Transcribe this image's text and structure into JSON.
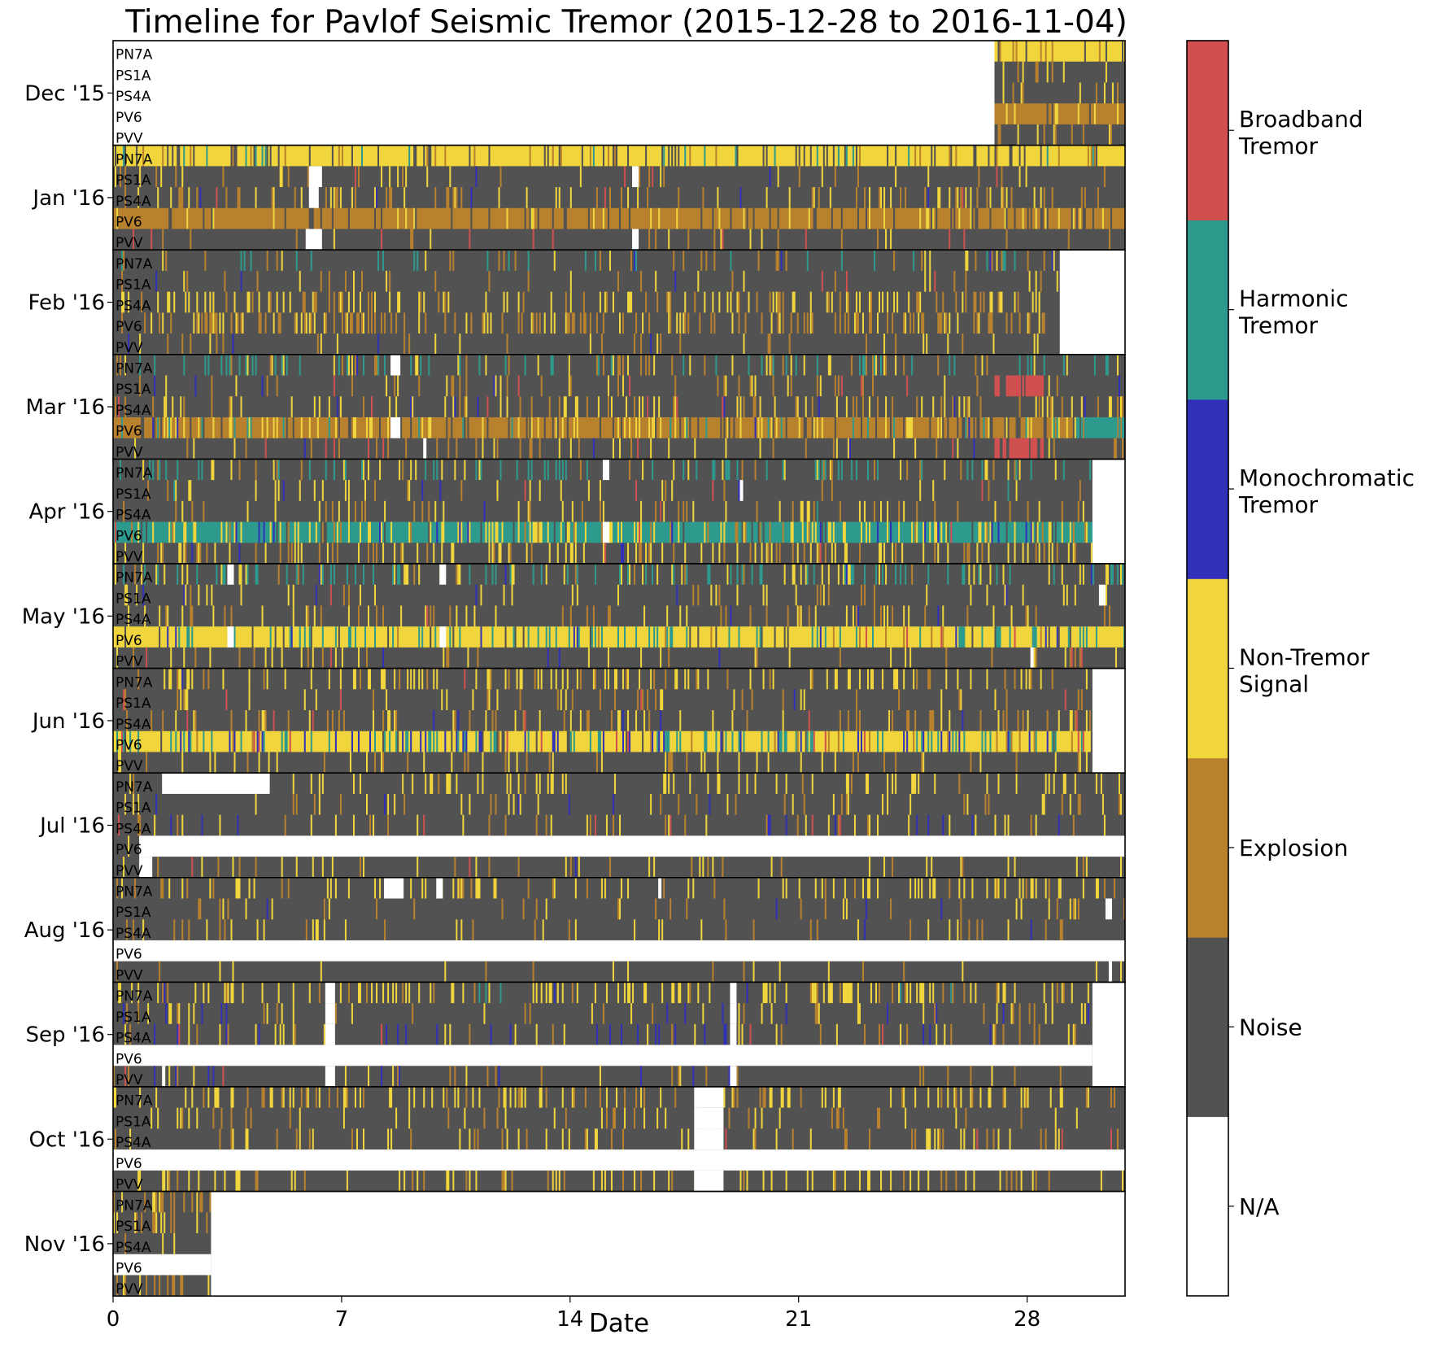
{
  "chart_data": {
    "type": "heatmap",
    "title": "Timeline for Pavlof Seismic Tremor (2015-12-28 to 2016-11-04)",
    "xlabel": "Date",
    "xlim": [
      0,
      31
    ],
    "x_ticks": [
      0,
      7,
      14,
      21,
      28
    ],
    "stations": [
      "PN7A",
      "PS1A",
      "PS4A",
      "PV6",
      "PVV"
    ],
    "legend_position": "right colorbar",
    "classes": [
      {
        "label": "N/A",
        "color": "#ffffff"
      },
      {
        "label": "Noise",
        "color": "#525252"
      },
      {
        "label": "Explosion",
        "color": "#b8812e"
      },
      {
        "label": "Non-Tremor Signal",
        "color": "#f0d53c"
      },
      {
        "label": "Monochromatic Tremor",
        "color": "#3030b8"
      },
      {
        "label": "Harmonic Tremor",
        "color": "#2e9a8e"
      },
      {
        "label": "Broadband Tremor",
        "color": "#d05050"
      }
    ],
    "colorbar_labels": [
      [
        "N/A"
      ],
      [
        "Noise"
      ],
      [
        "Explosion"
      ],
      [
        "Non-Tremor",
        "Signal"
      ],
      [
        "Monochromatic",
        "Tremor"
      ],
      [
        "Harmonic",
        "Tremor"
      ],
      [
        "Broadband",
        "Tremor"
      ]
    ],
    "months": [
      {
        "label": "Dec '15",
        "start_day": 27,
        "end_day": 31,
        "missing": [
          [],
          [],
          [],
          [],
          []
        ],
        "weights": {
          "PN7A": [
            0,
            30,
            20,
            50,
            0,
            0,
            0
          ],
          "PS1A": [
            0,
            80,
            15,
            5,
            0,
            0,
            0
          ],
          "PS4A": [
            0,
            60,
            25,
            15,
            0,
            0,
            0
          ],
          "PV6": [
            0,
            15,
            60,
            25,
            0,
            0,
            0
          ],
          "PVV": [
            0,
            70,
            15,
            15,
            0,
            0,
            0
          ]
        }
      },
      {
        "label": "Jan '16",
        "start_day": 0,
        "end_day": 31,
        "missing": [
          [],
          [
            [
              6,
              6.4
            ],
            [
              15.9,
              16.1
            ]
          ],
          [
            [
              6,
              6.3
            ]
          ],
          [],
          [
            [
              5.9,
              6.4
            ],
            [
              15.9,
              16.1
            ]
          ]
        ],
        "weights": {
          "PN7A": [
            0,
            25,
            10,
            55,
            0,
            10,
            0
          ],
          "PS1A": [
            0,
            80,
            10,
            8,
            1,
            0,
            1
          ],
          "PS4A": [
            0,
            65,
            20,
            13,
            1,
            0,
            1
          ],
          "PV6": [
            0,
            25,
            60,
            15,
            0,
            0,
            0
          ],
          "PVV": [
            0,
            88,
            5,
            4,
            0,
            0,
            3
          ]
        }
      },
      {
        "label": "Feb '16",
        "start_day": 0,
        "end_day": 29,
        "missing": [
          [],
          [],
          [],
          [],
          []
        ],
        "weights": {
          "PN7A": [
            0,
            75,
            10,
            5,
            1,
            9,
            0
          ],
          "PS1A": [
            0,
            85,
            8,
            5,
            1,
            0,
            1
          ],
          "PS4A": [
            0,
            55,
            20,
            25,
            0,
            0,
            0
          ],
          "PV6": [
            0,
            40,
            40,
            20,
            0,
            0,
            0
          ],
          "PVV": [
            0,
            85,
            8,
            5,
            2,
            0,
            0
          ]
        }
      },
      {
        "label": "Mar '16",
        "start_day": 0,
        "end_day": 31,
        "missing": [
          [
            [
              8.5,
              8.8
            ]
          ],
          [],
          [],
          [
            [
              8.5,
              8.8
            ]
          ],
          [
            [
              9.5,
              9.6
            ]
          ]
        ],
        "weights": {
          "PN7A": [
            0,
            60,
            10,
            10,
            1,
            19,
            0
          ],
          "PS1A": [
            0,
            78,
            10,
            8,
            2,
            0,
            2
          ],
          "PS4A": [
            0,
            60,
            15,
            22,
            2,
            0,
            1
          ],
          "PV6": [
            0,
            30,
            35,
            25,
            1,
            9,
            0
          ],
          "PVV": [
            0,
            75,
            12,
            10,
            1,
            0,
            2
          ]
        },
        "bursts": [
          {
            "rows": [
              1,
              4
            ],
            "from": 27,
            "to": 28.5,
            "cls": 6
          },
          {
            "rows": [
              3
            ],
            "from": 29.5,
            "to": 31,
            "cls": 5
          }
        ]
      },
      {
        "label": "Apr '16",
        "start_day": 0,
        "end_day": 30,
        "missing": [
          [
            [
              15,
              15.2
            ]
          ],
          [
            [
              19.2,
              19.3
            ]
          ],
          [],
          [
            [
              15,
              15.2
            ]
          ],
          []
        ],
        "weights": {
          "PN7A": [
            0,
            65,
            5,
            10,
            0,
            20,
            0
          ],
          "PS1A": [
            0,
            85,
            5,
            7,
            1,
            1,
            1
          ],
          "PS4A": [
            0,
            70,
            15,
            12,
            1,
            1,
            1
          ],
          "PV6": [
            0,
            10,
            10,
            35,
            5,
            38,
            2
          ],
          "PVV": [
            0,
            55,
            15,
            28,
            1,
            0,
            1
          ]
        }
      },
      {
        "label": "May '16",
        "start_day": 0,
        "end_day": 31,
        "missing": [
          [
            [
              10,
              10.2
            ],
            [
              3.5,
              3.7
            ]
          ],
          [
            [
              30.2,
              30.4
            ]
          ],
          [],
          [
            [
              10,
              10.2
            ],
            [
              3.5,
              3.7
            ]
          ],
          [
            [
              28.1,
              28.2
            ]
          ]
        ],
        "weights": {
          "PN7A": [
            0,
            50,
            5,
            20,
            1,
            24,
            0
          ],
          "PS1A": [
            0,
            80,
            5,
            13,
            1,
            0,
            1
          ],
          "PS4A": [
            0,
            75,
            10,
            12,
            2,
            0,
            1
          ],
          "PV6": [
            0,
            10,
            5,
            50,
            5,
            28,
            2
          ],
          "PVV": [
            0,
            80,
            8,
            9,
            2,
            0,
            1
          ]
        }
      },
      {
        "label": "Jun '16",
        "start_day": 0,
        "end_day": 30,
        "missing": [
          [],
          [],
          [],
          [],
          []
        ],
        "weights": {
          "PN7A": [
            0,
            55,
            10,
            33,
            1,
            0,
            1
          ],
          "PS1A": [
            0,
            85,
            5,
            8,
            1,
            0,
            1
          ],
          "PS4A": [
            0,
            70,
            15,
            12,
            2,
            0,
            1
          ],
          "PV6": [
            0,
            10,
            5,
            40,
            15,
            27,
            3
          ],
          "PVV": [
            0,
            75,
            10,
            14,
            1,
            0,
            0
          ]
        }
      },
      {
        "label": "Jul '16",
        "start_day": 0,
        "end_day": 31,
        "missing": [
          [
            [
              1.5,
              4.8
            ]
          ],
          [],
          [],
          [
            [
              0.8,
              31
            ]
          ],
          [
            [
              0.8,
              1.2
            ]
          ]
        ],
        "weights": {
          "PN7A": [
            0,
            70,
            5,
            25,
            0,
            0,
            0
          ],
          "PS1A": [
            0,
            80,
            8,
            10,
            2,
            0,
            0
          ],
          "PS4A": [
            0,
            75,
            10,
            10,
            4,
            0,
            1
          ],
          "PV6": [
            0,
            90,
            5,
            5,
            0,
            0,
            0
          ],
          "PVV": [
            0,
            80,
            8,
            10,
            1,
            0,
            1
          ]
        }
      },
      {
        "label": "Aug '16",
        "start_day": 0,
        "end_day": 31,
        "missing": [
          [
            [
              8.3,
              8.9
            ],
            [
              9.9,
              10.1
            ],
            [
              16.7,
              16.8
            ]
          ],
          [
            [
              30.4,
              30.6
            ]
          ],
          [],
          [
            [
              0,
              31
            ]
          ],
          [
            [
              30.5,
              30.6
            ]
          ]
        ],
        "weights": {
          "PN7A": [
            0,
            60,
            10,
            30,
            0,
            0,
            0
          ],
          "PS1A": [
            0,
            85,
            8,
            6,
            1,
            0,
            0
          ],
          "PS4A": [
            0,
            80,
            12,
            7,
            1,
            0,
            0
          ],
          "PV6": [
            0,
            100,
            0,
            0,
            0,
            0,
            0
          ],
          "PVV": [
            0,
            93,
            4,
            3,
            0,
            0,
            0
          ]
        }
      },
      {
        "label": "Sep '16",
        "start_day": 0,
        "end_day": 30,
        "missing": [
          [
            [
              6.5,
              6.8
            ],
            [
              18.9,
              19.1
            ]
          ],
          [
            [
              6.5,
              6.8
            ],
            [
              18.9,
              19.1
            ]
          ],
          [
            [
              6.5,
              6.8
            ],
            [
              18.9,
              19.1
            ]
          ],
          [
            [
              0,
              30
            ]
          ],
          [
            [
              1.5,
              1.6
            ],
            [
              6.5,
              6.8
            ],
            [
              18.9,
              19.1
            ]
          ]
        ],
        "weights": {
          "PN7A": [
            0,
            50,
            10,
            35,
            1,
            4,
            0
          ],
          "PS1A": [
            0,
            80,
            8,
            8,
            4,
            0,
            0
          ],
          "PS4A": [
            0,
            70,
            10,
            10,
            9,
            0,
            1
          ],
          "PV6": [
            0,
            100,
            0,
            0,
            0,
            0,
            0
          ],
          "PVV": [
            0,
            80,
            8,
            5,
            4,
            0,
            3
          ]
        }
      },
      {
        "label": "Oct '16",
        "start_day": 0,
        "end_day": 31,
        "missing": [
          [
            [
              17.8,
              18.7
            ]
          ],
          [
            [
              17.8,
              18.7
            ]
          ],
          [
            [
              17.8,
              18.7
            ]
          ],
          [
            [
              0,
              31
            ]
          ],
          [
            [
              17.8,
              18.7
            ]
          ]
        ],
        "weights": {
          "PN7A": [
            0,
            55,
            15,
            30,
            0,
            0,
            0
          ],
          "PS1A": [
            0,
            80,
            10,
            10,
            0,
            0,
            0
          ],
          "PS4A": [
            0,
            75,
            10,
            14,
            0,
            0,
            1
          ],
          "PV6": [
            0,
            100,
            0,
            0,
            0,
            0,
            0
          ],
          "PVV": [
            0,
            70,
            10,
            20,
            0,
            0,
            0
          ]
        }
      },
      {
        "label": "Nov '16",
        "start_day": 0,
        "end_day": 3,
        "missing": [
          [],
          [],
          [],
          [
            [
              0,
              3
            ]
          ],
          []
        ],
        "weights": {
          "PN7A": [
            0,
            40,
            30,
            30,
            0,
            0,
            0
          ],
          "PS1A": [
            0,
            50,
            30,
            20,
            0,
            0,
            0
          ],
          "PS4A": [
            0,
            85,
            10,
            5,
            0,
            0,
            0
          ],
          "PV6": [
            0,
            100,
            0,
            0,
            0,
            0,
            0
          ],
          "PVV": [
            0,
            50,
            20,
            30,
            0,
            0,
            0
          ]
        }
      }
    ]
  }
}
